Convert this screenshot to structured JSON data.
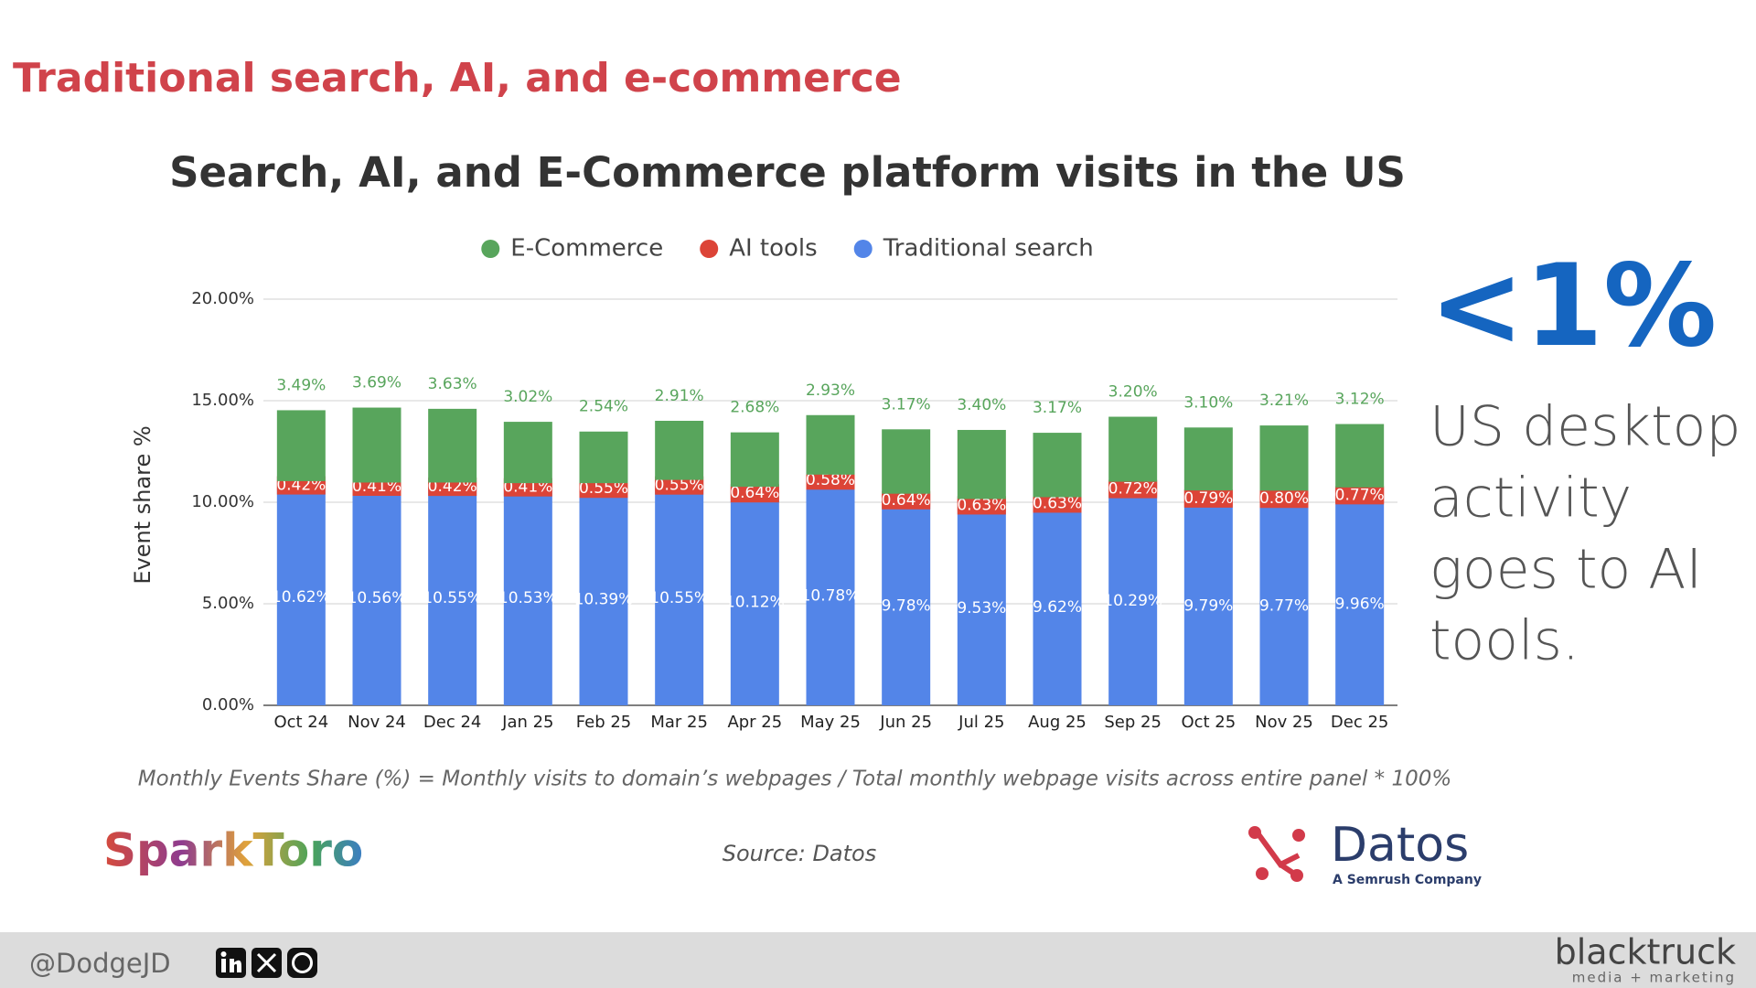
{
  "slide": {
    "heading": "Traditional search, AI, and e-commerce",
    "stat": "<1%",
    "statement": [
      "US desktop",
      "activity",
      "goes to AI",
      "tools."
    ],
    "sparktoro": "SparkToro",
    "datos": "Datos",
    "datos_tagline": "A Semrush Company",
    "handle": "@DodgeJD",
    "brand": "blacktruck",
    "brand_tagline": "media + marketing"
  },
  "chart_data": {
    "type": "stacked_bar",
    "title": "Search, AI, and E-Commerce platform visits in the US",
    "y_label": "Event share %",
    "footnote": "Monthly Events Share (%) = Monthly visits to domain’s webpages / Total monthly webpage visits across entire panel * 100%",
    "source": "Source: Datos",
    "categories": [
      "Oct 24",
      "Nov 24",
      "Dec 24",
      "Jan 25",
      "Feb 25",
      "Mar 25",
      "Apr 25",
      "May 25",
      "Jun 25",
      "Jul 25",
      "Aug 25",
      "Sep 25",
      "Oct 25",
      "Nov 25",
      "Dec 25"
    ],
    "series": [
      {
        "name": "Traditional search",
        "color": "#5385e8",
        "values": [
          10.62,
          10.56,
          10.55,
          10.53,
          10.39,
          10.55,
          10.12,
          10.78,
          9.78,
          9.53,
          9.62,
          10.29,
          9.79,
          9.77,
          9.96
        ],
        "value_labels": [
          "10.62%",
          "10.56%",
          "10.55%",
          "10.53%",
          "10.39%",
          "10.55%",
          "10.12%",
          "10.78%",
          "9.78%",
          "9.53%",
          "9.62%",
          "10.29%",
          "9.79%",
          "9.77%",
          "9.96%"
        ]
      },
      {
        "name": "AI tools",
        "color": "#dc4437",
        "values": [
          0.42,
          0.41,
          0.42,
          0.41,
          0.55,
          0.55,
          0.64,
          0.58,
          0.64,
          0.63,
          0.63,
          0.72,
          0.79,
          0.8,
          0.77
        ],
        "value_labels": [
          "0.42%",
          "0.41%",
          "0.42%",
          "0.41%",
          "0.55%",
          "0.55%",
          "0.64%",
          "0.58%",
          "0.64%",
          "0.63%",
          "0.63%",
          "0.72%",
          "0.79%",
          "0.80%",
          "0.77%"
        ]
      },
      {
        "name": "E-Commerce",
        "color": "#58a55c",
        "values": [
          3.49,
          3.69,
          3.63,
          3.02,
          2.54,
          2.91,
          2.68,
          2.93,
          3.17,
          3.4,
          3.17,
          3.2,
          3.1,
          3.21,
          3.12
        ],
        "value_labels": [
          "3.49%",
          "3.69%",
          "3.63%",
          "3.02%",
          "2.54%",
          "2.91%",
          "2.68%",
          "2.93%",
          "3.17%",
          "3.40%",
          "3.17%",
          "3.20%",
          "3.10%",
          "3.21%",
          "3.12%"
        ]
      }
    ],
    "ylim": [
      0,
      20
    ],
    "yticks": [
      {
        "value": 0,
        "label": "0.00%"
      },
      {
        "value": 5,
        "label": "5.00%"
      },
      {
        "value": 10,
        "label": "10.00%"
      },
      {
        "value": 15,
        "label": "15.00%"
      },
      {
        "value": 20,
        "label": "20.00%"
      }
    ],
    "grid": true
  }
}
